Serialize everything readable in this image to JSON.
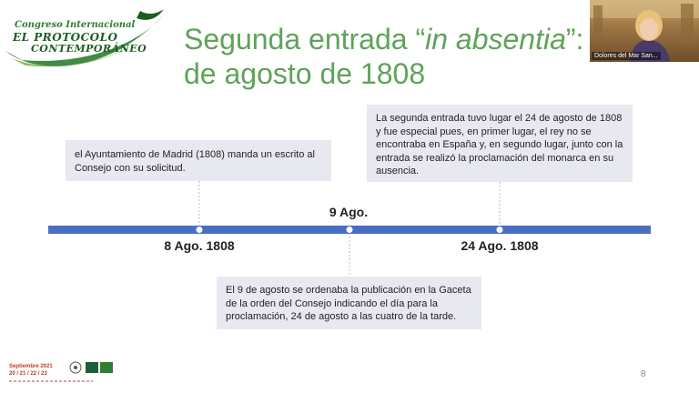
{
  "slide": {
    "title_prefix": "Segunda entrada “",
    "title_emphasis": "in absentia",
    "title_suffix": "”:",
    "title_line2": "de agosto de 1808",
    "page_number": "8"
  },
  "logo": {
    "line1": "Congreso Internacional",
    "line2": "EL PROTOCOLO",
    "line3": "CONTEMPORÁNEO"
  },
  "video": {
    "participant_name": "Dolores del Mar San..."
  },
  "timeline": {
    "events": [
      {
        "date": "8 Ago. 1808",
        "text": "el Ayuntamiento de Madrid (1808) manda un escrito al Consejo con su solicitud."
      },
      {
        "date": "9 Ago.",
        "text": "El 9 de agosto se ordenaba la publicación en la Gaceta de la orden del Consejo indicando el día para la proclamación, 24 de agosto a las cuatro de la tarde."
      },
      {
        "date": "24 Ago. 1808",
        "text": "La segunda entrada tuvo lugar el 24 de agosto de 1808 y fue especial pues, en primer lugar, el rey no se encontraba en España y, en segundo lugar, junto con la entrada se realizó la proclamación del monarca en su ausencia."
      }
    ]
  },
  "footer": {
    "month": "Septiembre 2021",
    "days": "20 / 21 / 22 / 23"
  },
  "colors": {
    "title_green": "#5fa35a",
    "timeline_blue": "#4a6fc0",
    "box_gray": "#e8e9f0",
    "footer_red": "#c0392b"
  }
}
